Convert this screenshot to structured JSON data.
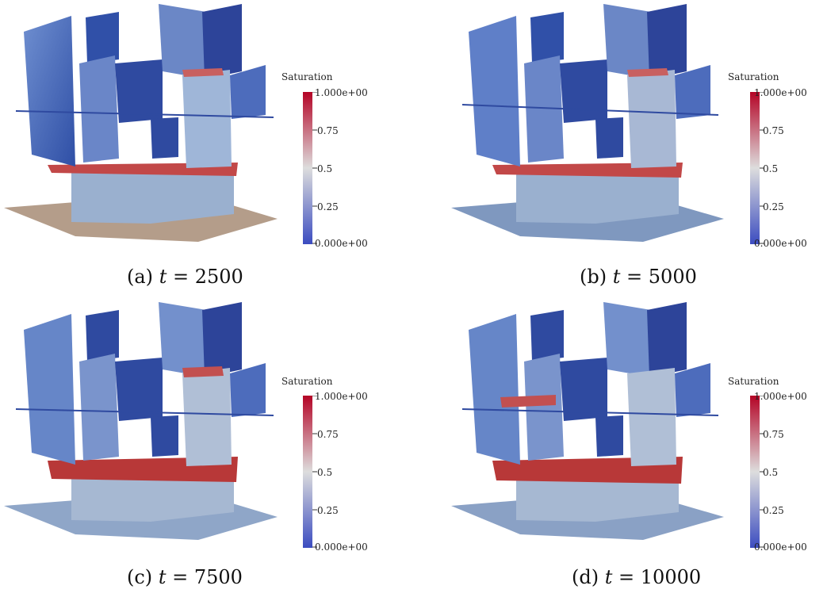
{
  "colorbar": {
    "title": "Saturation",
    "ticks": [
      "1.000e+00",
      "0.75",
      "0.5",
      "0.25",
      "0.000e+00"
    ]
  },
  "colors": {
    "low": "#3b4cc0",
    "mid": "#dddddd",
    "high": "#b40426",
    "floor": "#b39a86"
  },
  "panels": [
    {
      "label": "(a)",
      "var": "t",
      "eq": "=",
      "value": "2500"
    },
    {
      "label": "(b)",
      "var": "t",
      "eq": "=",
      "value": "5000"
    },
    {
      "label": "(c)",
      "var": "t",
      "eq": "=",
      "value": "7500"
    },
    {
      "label": "(d)",
      "var": "t",
      "eq": "=",
      "value": "10000"
    }
  ]
}
